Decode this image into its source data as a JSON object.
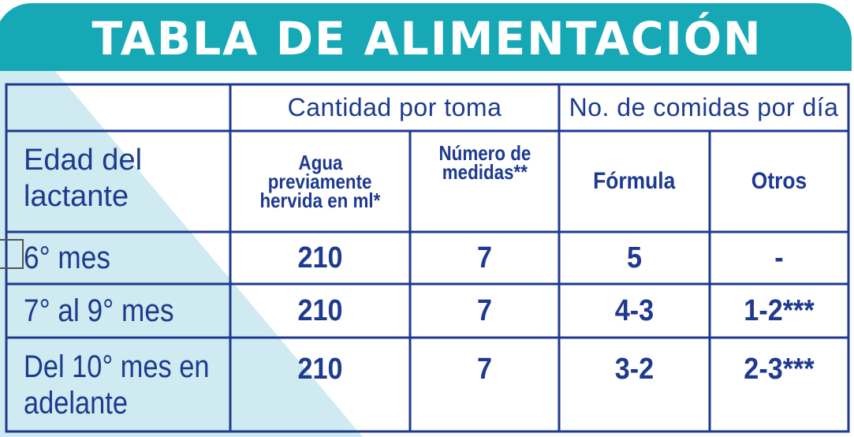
{
  "title": "TABLA DE ALIMENTACIÓN",
  "colors": {
    "brand": "#17a8b6",
    "text": "#1d3a8f",
    "wedge": "#cfeaf0"
  },
  "group_headers": {
    "cantidad": "Cantidad por toma",
    "comidas": "No. de comidas por día"
  },
  "age_header_line1": "Edad del",
  "age_header_line2": "lactante",
  "sub_headers": {
    "agua_line1": "Agua",
    "agua_line2": "previamente",
    "agua_line3": "hervida en ml*",
    "medidas_line1": "Número de",
    "medidas_line2": "medidas**",
    "formula": "Fórmula",
    "otros": "Otros"
  },
  "rows": [
    {
      "age_line1": "6° mes",
      "age_line2": "",
      "agua": "210",
      "medidas": "7",
      "formula": "5",
      "otros": "-"
    },
    {
      "age_line1": "7° al 9° mes",
      "age_line2": "",
      "agua": "210",
      "medidas": "7",
      "formula": "4-3",
      "otros": "1-2***"
    },
    {
      "age_line1": "Del 10° mes en",
      "age_line2": "adelante",
      "agua": "210",
      "medidas": "7",
      "formula": "3-2",
      "otros": "2-3***"
    }
  ]
}
